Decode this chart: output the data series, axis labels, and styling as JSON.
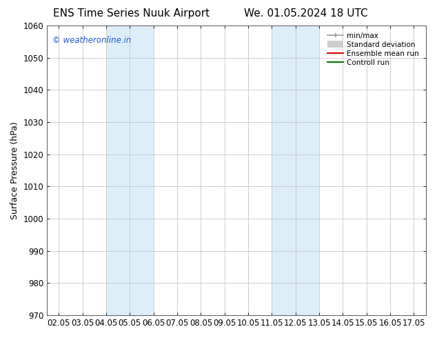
{
  "title_left": "ENS Time Series Nuuk Airport",
  "title_right": "We. 01.05.2024 18 UTC",
  "ylabel": "Surface Pressure (hPa)",
  "ylim": [
    970,
    1060
  ],
  "yticks": [
    970,
    980,
    990,
    1000,
    1010,
    1020,
    1030,
    1040,
    1050,
    1060
  ],
  "xtick_labels": [
    "02.05",
    "03.05",
    "04.05",
    "05.05",
    "06.05",
    "07.05",
    "08.05",
    "09.05",
    "10.05",
    "11.05",
    "12.05",
    "13.05",
    "14.05",
    "15.05",
    "16.05",
    "17.05"
  ],
  "xtick_positions": [
    0,
    1,
    2,
    3,
    4,
    5,
    6,
    7,
    8,
    9,
    10,
    11,
    12,
    13,
    14,
    15
  ],
  "shaded_regions": [
    {
      "xmin": 2,
      "xmax": 4,
      "color": "#ddeef9"
    },
    {
      "xmin": 9,
      "xmax": 11,
      "color": "#ddeef9"
    }
  ],
  "watermark": "© weatheronline.in",
  "watermark_color": "#2255cc",
  "bg_color": "#ffffff",
  "plot_bg_color": "#ffffff",
  "grid_color": "#bbbbbb",
  "legend_items": [
    {
      "label": "min/max",
      "color": "#999999",
      "lw": 1.2,
      "style": "minmax"
    },
    {
      "label": "Standard deviation",
      "color": "#cccccc",
      "lw": 7,
      "style": "thick"
    },
    {
      "label": "Ensemble mean run",
      "color": "#dd0000",
      "lw": 1.5,
      "style": "line"
    },
    {
      "label": "Controll run",
      "color": "#007700",
      "lw": 1.5,
      "style": "line"
    }
  ],
  "title_fontsize": 11,
  "tick_fontsize": 8.5,
  "label_fontsize": 9,
  "watermark_fontsize": 8.5
}
